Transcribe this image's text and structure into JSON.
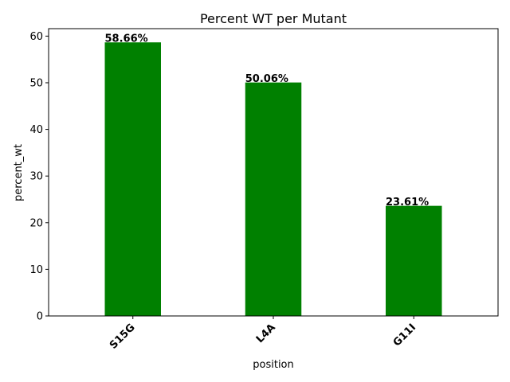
{
  "chart_data": {
    "type": "bar",
    "title": "Percent WT per Mutant",
    "xlabel": "position",
    "ylabel": "percent_wt",
    "categories": [
      "S15G",
      "L4A",
      "G11I"
    ],
    "values": [
      58.66,
      50.06,
      23.61
    ],
    "data_labels": [
      "58.66%",
      "50.06%",
      "23.61%"
    ],
    "yticks": [
      0,
      10,
      20,
      30,
      40,
      50,
      60
    ],
    "ytick_labels": [
      "0",
      "10",
      "20",
      "30",
      "40",
      "50",
      "60"
    ],
    "ylim": [
      0,
      61.6
    ],
    "bar_color": "#008000",
    "grid": false,
    "legend": "none",
    "x_tick_rotation": "45 degrees"
  }
}
